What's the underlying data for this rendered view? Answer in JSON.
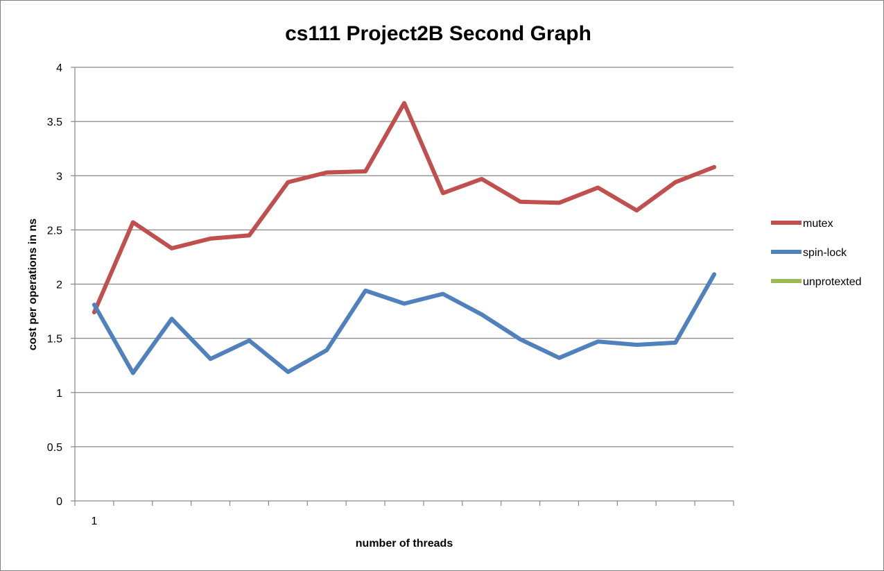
{
  "chart_data": {
    "type": "line",
    "title": "cs111 Project2B Second Graph",
    "xlabel": "number of threads",
    "ylabel": "cost per operations in ns",
    "ylim": [
      0,
      4
    ],
    "y_ticks": [
      "0",
      "0.5",
      "1",
      "1.5",
      "2",
      "2.5",
      "3",
      "3.5",
      "4"
    ],
    "y_tick_values": [
      0,
      0.5,
      1,
      1.5,
      2,
      2.5,
      3,
      3.5,
      4
    ],
    "x_tick_labels": [
      "1"
    ],
    "num_categories": 17,
    "grid": true,
    "legend_position": "right",
    "series": [
      {
        "name": "mutex",
        "color": "#c0504d",
        "values": [
          1.74,
          2.57,
          2.33,
          2.42,
          2.45,
          2.94,
          3.03,
          3.04,
          3.67,
          2.84,
          2.97,
          2.76,
          2.75,
          2.89,
          2.68,
          2.94,
          3.08
        ]
      },
      {
        "name": "spin-lock",
        "color": "#4f81bd",
        "values": [
          1.81,
          1.18,
          1.68,
          1.31,
          1.48,
          1.19,
          1.39,
          1.94,
          1.82,
          1.91,
          1.72,
          1.49,
          1.32,
          1.47,
          1.44,
          1.46,
          2.09
        ]
      },
      {
        "name": "unprotexted",
        "color": "#9bbb59",
        "values": []
      }
    ]
  }
}
